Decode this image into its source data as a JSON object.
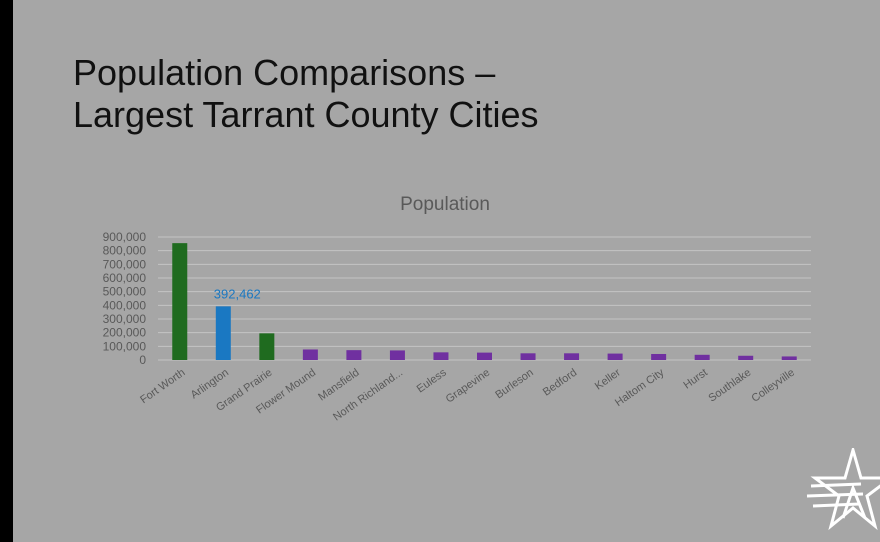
{
  "slide": {
    "title_line1": "Population Comparisons –",
    "title_line2": "Largest Tarrant County Cities",
    "background": "#a6a6a6"
  },
  "logo": {
    "name": "star-logo-icon"
  },
  "chart_data": {
    "type": "bar",
    "title": "Population",
    "xlabel": "",
    "ylabel": "",
    "ylim": [
      0,
      900000
    ],
    "yticks": [
      0,
      100000,
      200000,
      300000,
      400000,
      500000,
      600000,
      700000,
      800000,
      900000
    ],
    "ytick_labels": [
      "0",
      "100,000",
      "200,000",
      "300,000",
      "400,000",
      "500,000",
      "600,000",
      "700,000",
      "800,000",
      "900,000"
    ],
    "grid": true,
    "legend": "none",
    "categories": [
      "Fort Worth",
      "Arlington",
      "Grand Prairie",
      "Flower Mound",
      "Mansfield",
      "North Richland...",
      "Euless",
      "Grapevine",
      "Burleson",
      "Bedford",
      "Keller",
      "Haltom City",
      "Hurst",
      "Southlake",
      "Colleyville"
    ],
    "values": [
      855000,
      392462,
      195000,
      77000,
      72000,
      70000,
      56000,
      54000,
      49000,
      49000,
      47000,
      44000,
      38000,
      31000,
      26000
    ],
    "bar_colors": [
      "#1f6b1f",
      "#1a78c2",
      "#1f6b1f",
      "#7030a0",
      "#7030a0",
      "#7030a0",
      "#7030a0",
      "#7030a0",
      "#7030a0",
      "#7030a0",
      "#7030a0",
      "#7030a0",
      "#7030a0",
      "#7030a0",
      "#7030a0"
    ],
    "data_labels": [
      {
        "category": "Arlington",
        "text": "392,462",
        "color": "#1a78c2"
      }
    ],
    "colors": {
      "axis_text": "#595959",
      "gridline": "#c4c4c4",
      "title": "#595959"
    }
  }
}
